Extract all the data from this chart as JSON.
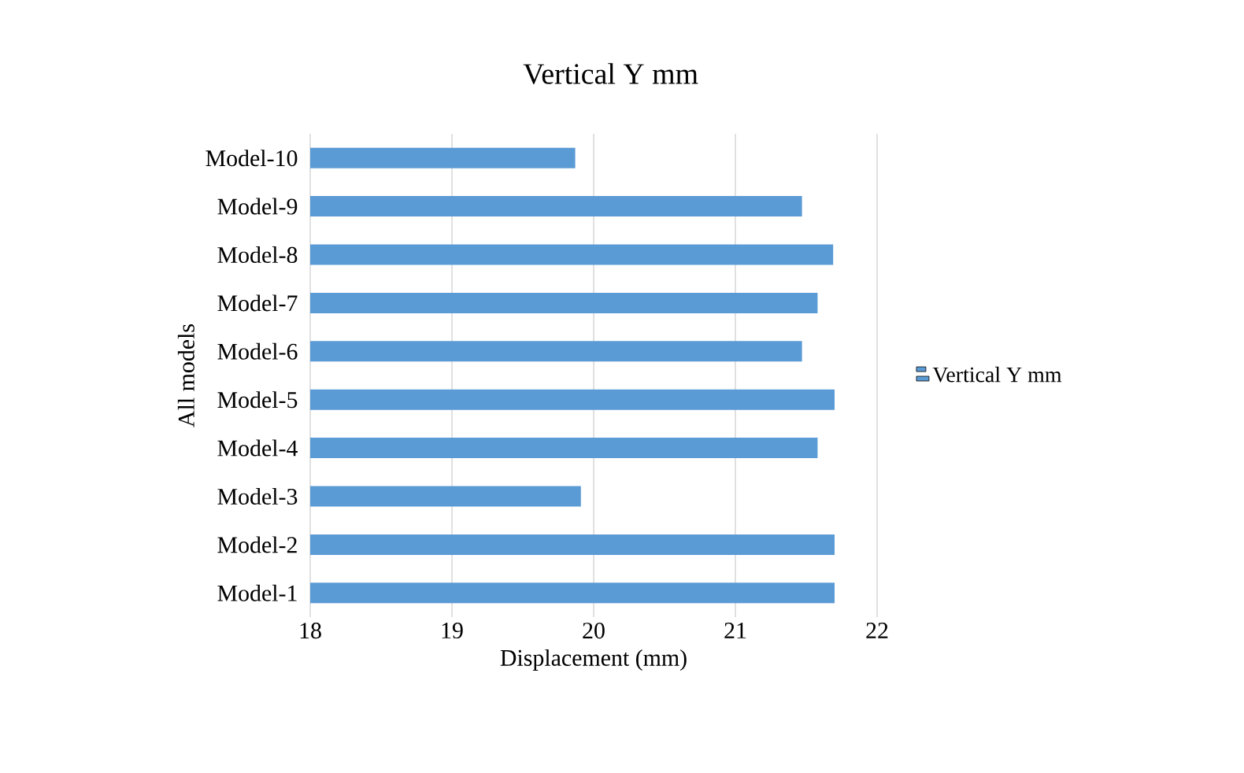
{
  "chart_data": {
    "type": "bar",
    "orientation": "horizontal",
    "title": "Vertical Y mm",
    "xlabel": "Displacement (mm)",
    "ylabel": "All models",
    "categories": [
      "Model-10",
      "Model-9",
      "Model-8",
      "Model-7",
      "Model-6",
      "Model-5",
      "Model-4",
      "Model-3",
      "Model-2",
      "Model-1"
    ],
    "series": [
      {
        "name": "Vertical Y mm",
        "color": "#5b9bd5",
        "values": [
          19.87,
          21.47,
          21.69,
          21.58,
          21.47,
          21.7,
          21.58,
          19.91,
          21.7,
          21.7
        ]
      }
    ],
    "xlim": [
      18,
      22
    ],
    "xticks": [
      18,
      19,
      20,
      21,
      22
    ],
    "grid": "x",
    "legend": "right"
  }
}
